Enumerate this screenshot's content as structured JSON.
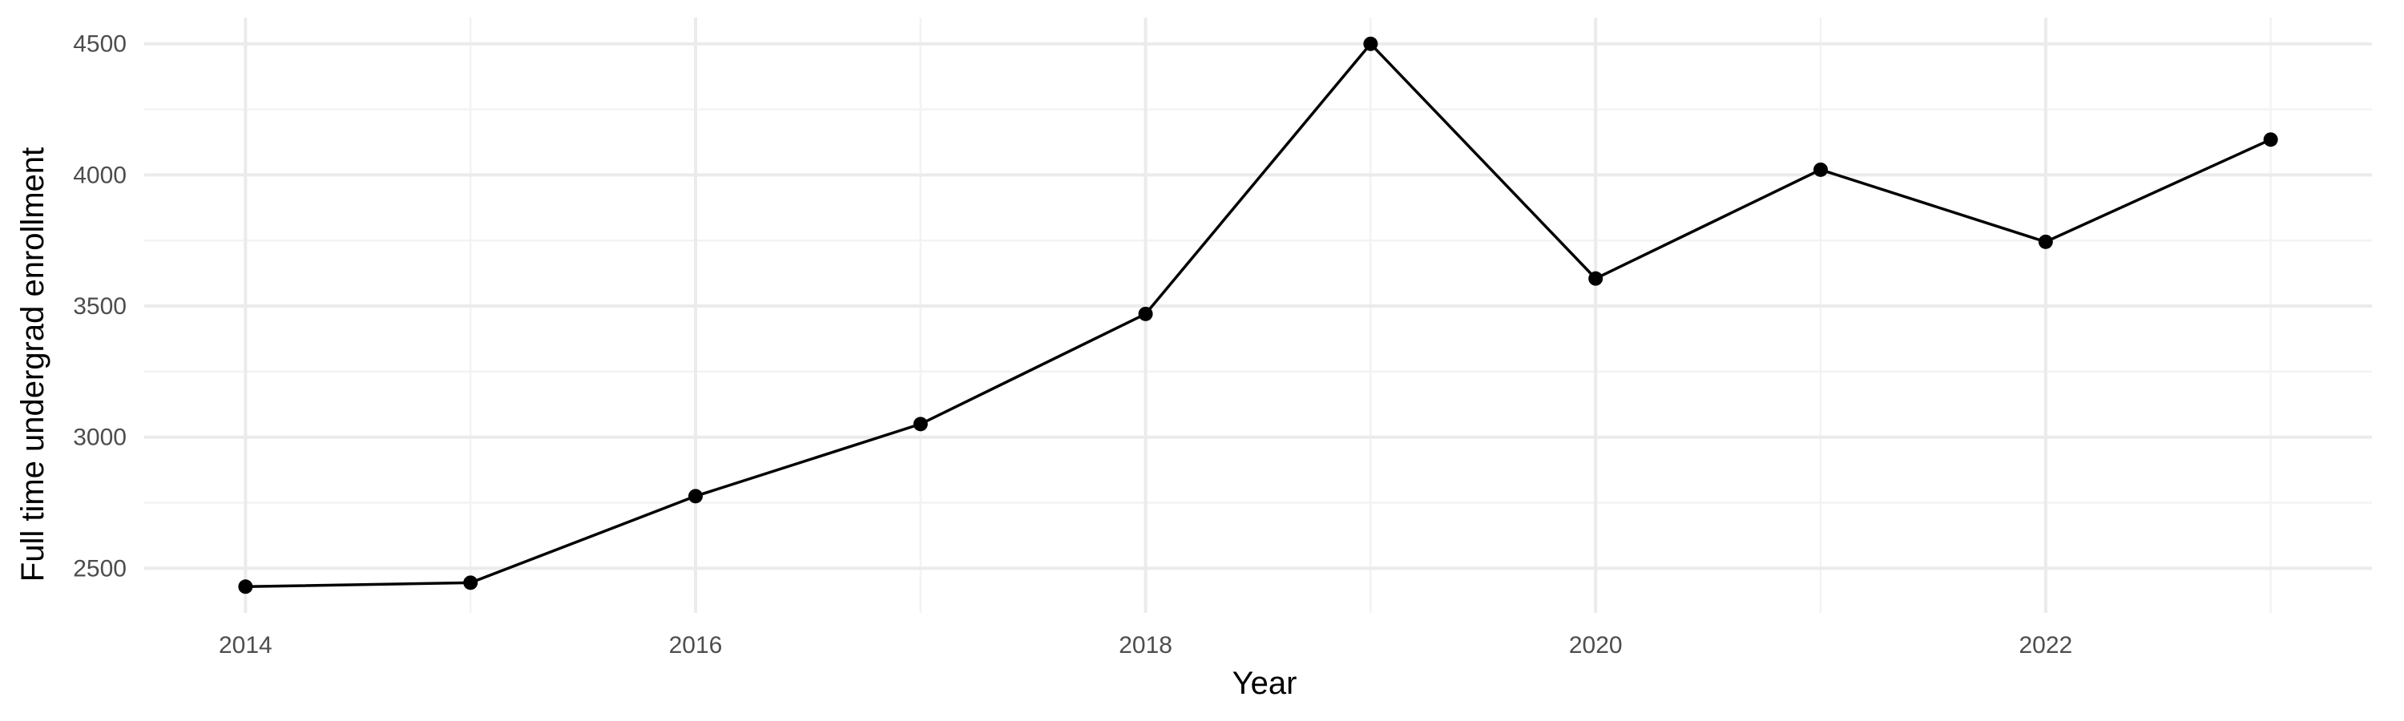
{
  "chart_data": {
    "type": "line",
    "xlabel": "Year",
    "ylabel": "Full time undergrad enrollment",
    "x": [
      2014,
      2015,
      2016,
      2017,
      2018,
      2019,
      2020,
      2021,
      2022,
      2023
    ],
    "values": [
      2430,
      2445,
      2775,
      3050,
      3470,
      4500,
      3605,
      4020,
      3745,
      4135
    ],
    "xlim": [
      2013.55,
      2023.45
    ],
    "ylim": [
      2330,
      4600
    ],
    "x_ticks": [
      2014,
      2016,
      2018,
      2020,
      2022
    ],
    "x_minor_ticks": [
      2015,
      2017,
      2019,
      2021,
      2023
    ],
    "y_ticks": [
      2500,
      3000,
      3500,
      4000,
      4500
    ],
    "y_minor_ticks": [
      2750,
      3250,
      3750,
      4250
    ],
    "grid": true,
    "legend": "none",
    "colors": {
      "line": "#000000",
      "grid": "#ebebeb",
      "tick_text": "#4d4d4d",
      "background": "#ffffff"
    }
  }
}
